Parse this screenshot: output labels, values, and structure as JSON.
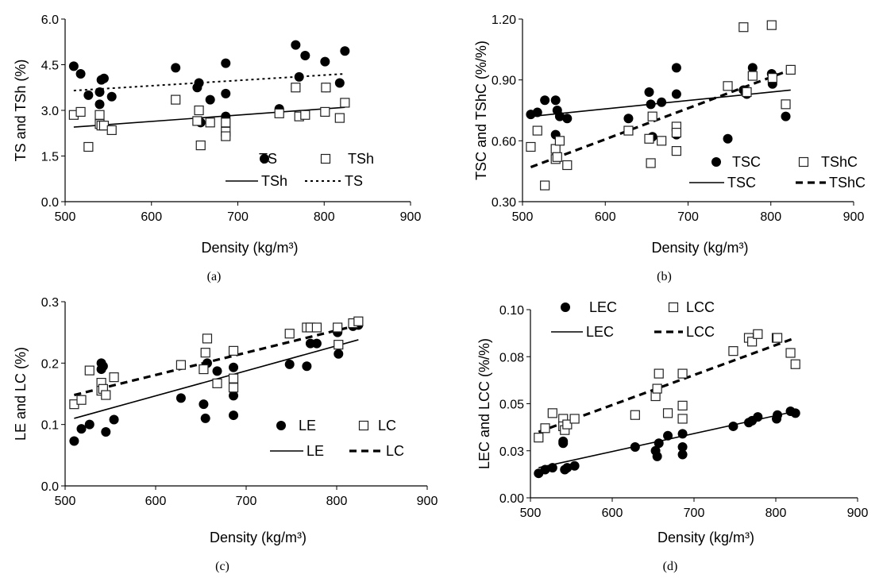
{
  "chart_data": [
    {
      "type": "scatter",
      "panel_label": "(a)",
      "xlabel": "Density (kg/m³)",
      "ylabel": "TS and TSh (%)",
      "xlim": [
        500,
        900
      ],
      "ylim": [
        0,
        6
      ],
      "x_ticks": [
        "500",
        "600",
        "700",
        "800",
        "900"
      ],
      "y_ticks": [
        "0.0",
        "1.5",
        "3.0",
        "4.5",
        "6.0"
      ],
      "series": [
        {
          "name": "TS",
          "marker": "filled-circle",
          "points": [
            [
              510,
              4.45
            ],
            [
              518,
              4.2
            ],
            [
              527,
              3.5
            ],
            [
              540,
              3.6
            ],
            [
              540,
              3.2
            ],
            [
              542,
              4.0
            ],
            [
              545,
              4.05
            ],
            [
              554,
              3.45
            ],
            [
              628,
              4.4
            ],
            [
              653,
              3.75
            ],
            [
              655,
              3.9
            ],
            [
              657,
              2.6
            ],
            [
              668,
              3.35
            ],
            [
              686,
              4.55
            ],
            [
              686,
              2.8
            ],
            [
              686,
              3.55
            ],
            [
              748,
              3.05
            ],
            [
              767,
              5.15
            ],
            [
              771,
              4.1
            ],
            [
              778,
              4.8
            ],
            [
              801,
              4.6
            ],
            [
              802,
              3.75
            ],
            [
              818,
              3.9
            ],
            [
              824,
              4.95
            ]
          ]
        },
        {
          "name": "TSh",
          "marker": "open-square",
          "points": [
            [
              510,
              2.85
            ],
            [
              518,
              2.95
            ],
            [
              527,
              1.8
            ],
            [
              540,
              2.55
            ],
            [
              540,
              2.85
            ],
            [
              542,
              2.5
            ],
            [
              545,
              2.5
            ],
            [
              554,
              2.35
            ],
            [
              628,
              3.35
            ],
            [
              653,
              2.65
            ],
            [
              655,
              3.0
            ],
            [
              657,
              1.85
            ],
            [
              668,
              2.6
            ],
            [
              686,
              2.3
            ],
            [
              686,
              2.15
            ],
            [
              686,
              2.6
            ],
            [
              748,
              2.9
            ],
            [
              767,
              3.75
            ],
            [
              771,
              2.8
            ],
            [
              778,
              2.85
            ],
            [
              801,
              2.95
            ],
            [
              802,
              3.75
            ],
            [
              818,
              2.75
            ],
            [
              824,
              3.25
            ]
          ]
        }
      ],
      "trendlines": [
        {
          "name": "TSh",
          "style": "solid",
          "x": [
            510,
            824
          ],
          "y": [
            2.45,
            3.1
          ]
        },
        {
          "name": "TS",
          "style": "dotted",
          "x": [
            510,
            824
          ],
          "y": [
            3.65,
            4.2
          ]
        }
      ]
    },
    {
      "type": "scatter",
      "panel_label": "(b)",
      "xlabel": "Density (kg/m³)",
      "ylabel": "TSC and TShC (%/%)",
      "xlim": [
        500,
        900
      ],
      "ylim": [
        0.3,
        1.2
      ],
      "x_ticks": [
        "500",
        "600",
        "700",
        "800",
        "900"
      ],
      "y_ticks": [
        "0.30",
        "0.60",
        "0.90",
        "1.20"
      ],
      "series": [
        {
          "name": "TSC",
          "marker": "filled-circle",
          "points": [
            [
              510,
              0.73
            ],
            [
              518,
              0.74
            ],
            [
              527,
              0.8
            ],
            [
              540,
              0.8
            ],
            [
              540,
              0.63
            ],
            [
              542,
              0.75
            ],
            [
              545,
              0.72
            ],
            [
              554,
              0.71
            ],
            [
              628,
              0.71
            ],
            [
              653,
              0.84
            ],
            [
              655,
              0.78
            ],
            [
              657,
              0.62
            ],
            [
              668,
              0.79
            ],
            [
              686,
              0.96
            ],
            [
              686,
              0.63
            ],
            [
              686,
              0.83
            ],
            [
              748,
              0.61
            ],
            [
              767,
              0.85
            ],
            [
              771,
              0.83
            ],
            [
              778,
              0.96
            ],
            [
              801,
              0.93
            ],
            [
              802,
              0.88
            ],
            [
              818,
              0.72
            ],
            [
              824,
              0.95
            ]
          ]
        },
        {
          "name": "TShC",
          "marker": "open-square",
          "points": [
            [
              510,
              0.57
            ],
            [
              518,
              0.65
            ],
            [
              527,
              0.38
            ],
            [
              540,
              0.51
            ],
            [
              540,
              0.56
            ],
            [
              542,
              0.52
            ],
            [
              545,
              0.6
            ],
            [
              554,
              0.48
            ],
            [
              628,
              0.65
            ],
            [
              653,
              0.61
            ],
            [
              655,
              0.49
            ],
            [
              657,
              0.72
            ],
            [
              668,
              0.6
            ],
            [
              686,
              0.67
            ],
            [
              686,
              0.55
            ],
            [
              686,
              0.64
            ],
            [
              748,
              0.87
            ],
            [
              767,
              1.16
            ],
            [
              771,
              0.84
            ],
            [
              778,
              0.92
            ],
            [
              801,
              1.17
            ],
            [
              802,
              0.91
            ],
            [
              818,
              0.78
            ],
            [
              824,
              0.95
            ]
          ]
        }
      ],
      "trendlines": [
        {
          "name": "TSC",
          "style": "solid",
          "x": [
            510,
            824
          ],
          "y": [
            0.72,
            0.85
          ]
        },
        {
          "name": "TShC",
          "style": "dashed",
          "x": [
            510,
            824
          ],
          "y": [
            0.47,
            0.95
          ]
        }
      ]
    },
    {
      "type": "scatter",
      "panel_label": "(c)",
      "xlabel": "Density (kg/m³)",
      "ylabel": "LE and LC (%)",
      "xlim": [
        500,
        900
      ],
      "ylim": [
        0,
        0.3
      ],
      "x_ticks": [
        "500",
        "600",
        "700",
        "800",
        "900"
      ],
      "y_ticks": [
        "0.0",
        "0.1",
        "0.2",
        "0.3"
      ],
      "series": [
        {
          "name": "LE",
          "marker": "filled-circle",
          "points": [
            [
              510,
              0.073
            ],
            [
              518,
              0.093
            ],
            [
              527,
              0.1
            ],
            [
              540,
              0.2
            ],
            [
              540,
              0.19
            ],
            [
              542,
              0.195
            ],
            [
              545,
              0.088
            ],
            [
              554,
              0.108
            ],
            [
              628,
              0.143
            ],
            [
              653,
              0.133
            ],
            [
              655,
              0.11
            ],
            [
              657,
              0.2
            ],
            [
              668,
              0.187
            ],
            [
              686,
              0.193
            ],
            [
              686,
              0.147
            ],
            [
              686,
              0.115
            ],
            [
              748,
              0.198
            ],
            [
              767,
              0.195
            ],
            [
              771,
              0.232
            ],
            [
              778,
              0.232
            ],
            [
              801,
              0.25
            ],
            [
              802,
              0.215
            ],
            [
              818,
              0.26
            ],
            [
              824,
              0.262
            ]
          ]
        },
        {
          "name": "LC",
          "marker": "open-square",
          "points": [
            [
              510,
              0.133
            ],
            [
              518,
              0.14
            ],
            [
              527,
              0.188
            ],
            [
              540,
              0.168
            ],
            [
              540,
              0.155
            ],
            [
              542,
              0.158
            ],
            [
              545,
              0.148
            ],
            [
              554,
              0.177
            ],
            [
              628,
              0.197
            ],
            [
              653,
              0.19
            ],
            [
              655,
              0.217
            ],
            [
              657,
              0.24
            ],
            [
              668,
              0.167
            ],
            [
              686,
              0.22
            ],
            [
              686,
              0.175
            ],
            [
              686,
              0.16
            ],
            [
              748,
              0.248
            ],
            [
              767,
              0.258
            ],
            [
              771,
              0.258
            ],
            [
              778,
              0.258
            ],
            [
              801,
              0.258
            ],
            [
              802,
              0.23
            ],
            [
              818,
              0.265
            ],
            [
              824,
              0.268
            ]
          ]
        }
      ],
      "trendlines": [
        {
          "name": "LE",
          "style": "solid",
          "x": [
            510,
            824
          ],
          "y": [
            0.11,
            0.238
          ]
        },
        {
          "name": "LC",
          "style": "dashed",
          "x": [
            510,
            824
          ],
          "y": [
            0.148,
            0.262
          ]
        }
      ]
    },
    {
      "type": "scatter",
      "panel_label": "(d)",
      "xlabel": "Density (kg/m³)",
      "ylabel": "LEC and LCC (%/%)",
      "xlim": [
        500,
        900
      ],
      "ylim": [
        0,
        0.1
      ],
      "x_ticks": [
        "500",
        "600",
        "700",
        "800",
        "900"
      ],
      "y_ticks": [
        "0.00",
        "0.03",
        "0.05",
        "0.08",
        "0.10"
      ],
      "series": [
        {
          "name": "LEC",
          "marker": "filled-circle",
          "points": [
            [
              510,
              0.013
            ],
            [
              518,
              0.015
            ],
            [
              527,
              0.016
            ],
            [
              540,
              0.03
            ],
            [
              540,
              0.029
            ],
            [
              542,
              0.015
            ],
            [
              545,
              0.016
            ],
            [
              554,
              0.017
            ],
            [
              628,
              0.027
            ],
            [
              653,
              0.025
            ],
            [
              655,
              0.022
            ],
            [
              657,
              0.029
            ],
            [
              668,
              0.033
            ],
            [
              686,
              0.034
            ],
            [
              686,
              0.027
            ],
            [
              686,
              0.023
            ],
            [
              748,
              0.038
            ],
            [
              767,
              0.04
            ],
            [
              771,
              0.041
            ],
            [
              778,
              0.043
            ],
            [
              801,
              0.042
            ],
            [
              802,
              0.044
            ],
            [
              818,
              0.046
            ],
            [
              824,
              0.045
            ]
          ]
        },
        {
          "name": "LCC",
          "marker": "open-square",
          "points": [
            [
              510,
              0.032
            ],
            [
              518,
              0.037
            ],
            [
              527,
              0.045
            ],
            [
              540,
              0.042
            ],
            [
              540,
              0.038
            ],
            [
              542,
              0.036
            ],
            [
              545,
              0.039
            ],
            [
              554,
              0.042
            ],
            [
              628,
              0.044
            ],
            [
              653,
              0.054
            ],
            [
              655,
              0.058
            ],
            [
              657,
              0.066
            ],
            [
              668,
              0.045
            ],
            [
              686,
              0.066
            ],
            [
              686,
              0.049
            ],
            [
              686,
              0.042
            ],
            [
              748,
              0.078
            ],
            [
              767,
              0.085
            ],
            [
              771,
              0.083
            ],
            [
              778,
              0.087
            ],
            [
              801,
              0.085
            ],
            [
              802,
              0.085
            ],
            [
              818,
              0.077
            ],
            [
              824,
              0.071
            ]
          ]
        }
      ],
      "trendlines": [
        {
          "name": "LEC",
          "style": "solid",
          "x": [
            510,
            824
          ],
          "y": [
            0.016,
            0.046
          ]
        },
        {
          "name": "LCC",
          "style": "dashed",
          "x": [
            510,
            824
          ],
          "y": [
            0.035,
            0.085
          ]
        }
      ]
    }
  ]
}
